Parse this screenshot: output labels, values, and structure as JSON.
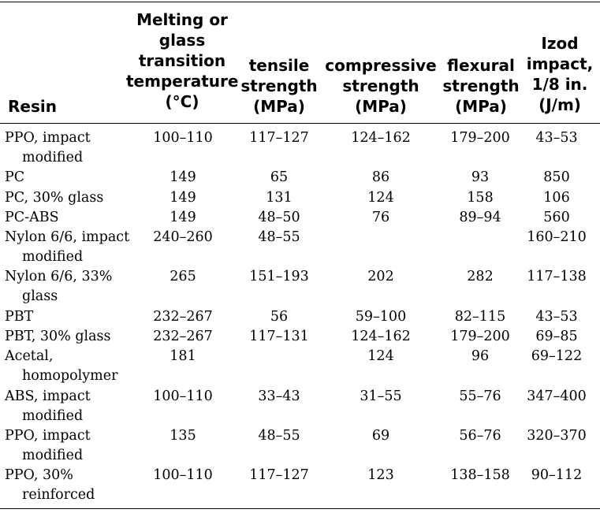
{
  "table": {
    "headers": {
      "resin": "Resin",
      "melting": "Melting or\nglass\ntransition\ntemperature\n(°C)",
      "tensile": "tensile\nstrength\n(MPa)",
      "compressive": "compressive\nstrength\n(MPa)",
      "flexural": "flexural\nstrength\n(MPa)",
      "izod": "Izod\nimpact,\n1/8 in.\n(J/m)"
    },
    "rows": [
      {
        "resin": [
          "PPO, impact",
          "modified"
        ],
        "melting": "100–110",
        "tensile": "117–127",
        "compressive": "124–162",
        "flexural": "179–200",
        "izod": "43–53"
      },
      {
        "resin": [
          "PC"
        ],
        "melting": "149",
        "tensile": "65",
        "compressive": "86",
        "flexural": "93",
        "izod": "850"
      },
      {
        "resin": [
          "PC, 30% glass"
        ],
        "melting": "149",
        "tensile": "131",
        "compressive": "124",
        "flexural": "158",
        "izod": "106"
      },
      {
        "resin": [
          "PC-ABS"
        ],
        "melting": "149",
        "tensile": "48–50",
        "compressive": "76",
        "flexural": "89–94",
        "izod": "560"
      },
      {
        "resin": [
          "Nylon 6/6, impact",
          "modified"
        ],
        "melting": "240–260",
        "tensile": "48–55",
        "compressive": "",
        "flexural": "",
        "izod": "160–210"
      },
      {
        "resin": [
          "Nylon 6/6, 33%",
          "glass"
        ],
        "melting": "265",
        "tensile": "151–193",
        "compressive": "202",
        "flexural": "282",
        "izod": "117–138"
      },
      {
        "resin": [
          "PBT"
        ],
        "melting": "232–267",
        "tensile": "56",
        "compressive": "59–100",
        "flexural": "82–115",
        "izod": "43–53"
      },
      {
        "resin": [
          "PBT, 30% glass"
        ],
        "melting": "232–267",
        "tensile": "117–131",
        "compressive": "124–162",
        "flexural": "179–200",
        "izod": "69–85"
      },
      {
        "resin": [
          "Acetal,",
          "homopolymer"
        ],
        "melting": "181",
        "tensile": "",
        "compressive": "124",
        "flexural": "96",
        "izod": "69–122"
      },
      {
        "resin": [
          "ABS, impact",
          "modified"
        ],
        "melting": "100–110",
        "tensile": "33–43",
        "compressive": "31–55",
        "flexural": "55–76",
        "izod": "347–400"
      },
      {
        "resin": [
          "PPO, impact",
          "modified"
        ],
        "melting": "135",
        "tensile": "48–55",
        "compressive": "69",
        "flexural": "56–76",
        "izod": "320–370"
      },
      {
        "resin": [
          "PPO, 30%",
          "reinforced"
        ],
        "melting": "100–110",
        "tensile": "117–127",
        "compressive": "123",
        "flexural": "138–158",
        "izod": "90–112"
      }
    ]
  }
}
